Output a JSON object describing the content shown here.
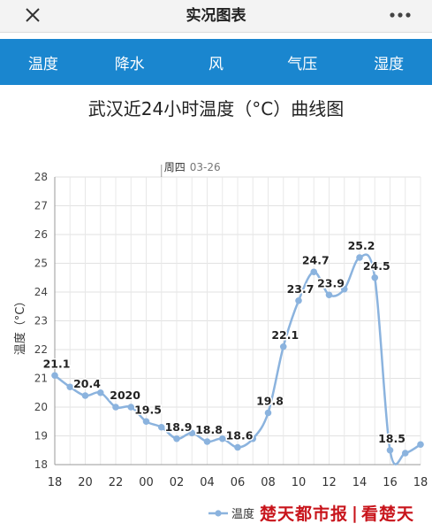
{
  "topbar": {
    "title": "实况图表"
  },
  "tabs": [
    {
      "label": "温度",
      "active": true
    },
    {
      "label": "降水",
      "active": false
    },
    {
      "label": "风",
      "active": false
    },
    {
      "label": "气压",
      "active": false
    },
    {
      "label": "湿度",
      "active": false
    }
  ],
  "chart_title": "武汉近24小时温度（°C）曲线图",
  "chart_data": {
    "type": "line",
    "ylabel": "温度（°C）",
    "ylim": [
      18,
      28
    ],
    "yticks": [
      "18",
      "19",
      "20",
      "21",
      "22",
      "23",
      "24",
      "25",
      "26",
      "27",
      "28"
    ],
    "xticks": [
      "18",
      "20",
      "22",
      "00",
      "02",
      "04",
      "06",
      "08",
      "10",
      "12",
      "14",
      "16",
      "18"
    ],
    "day_marker": {
      "label": "周四",
      "date": "03-26",
      "x_hour": 25
    },
    "grid": true,
    "legend": "bottom-right",
    "color": "#8bb3de",
    "series": [
      {
        "name": "温度",
        "x": [
          18,
          19,
          20,
          21,
          22,
          23,
          24,
          25,
          26,
          27,
          28,
          29,
          30,
          31,
          32,
          33,
          34,
          35,
          36,
          37,
          38,
          39,
          40,
          41,
          42
        ],
        "values": [
          21.1,
          20.7,
          20.4,
          20.5,
          20.0,
          20.0,
          19.5,
          19.3,
          18.9,
          19.1,
          18.8,
          18.9,
          18.6,
          18.9,
          19.8,
          22.1,
          23.7,
          24.7,
          23.9,
          24.1,
          25.2,
          24.5,
          18.5,
          18.4,
          18.7
        ],
        "labels": [
          "21.1",
          "",
          "20.4",
          "",
          "20",
          "20",
          "19.5",
          "",
          "18.9",
          "",
          "18.8",
          "",
          "18.6",
          "",
          "19.8",
          "22.1",
          "23.7",
          "24.7",
          "23.9",
          "",
          "25.2",
          "24.5",
          "18.5",
          "",
          ""
        ]
      }
    ]
  },
  "legend": {
    "label": "温度"
  },
  "watermark": {
    "text1": "楚天都市报",
    "text2": "看楚天"
  }
}
